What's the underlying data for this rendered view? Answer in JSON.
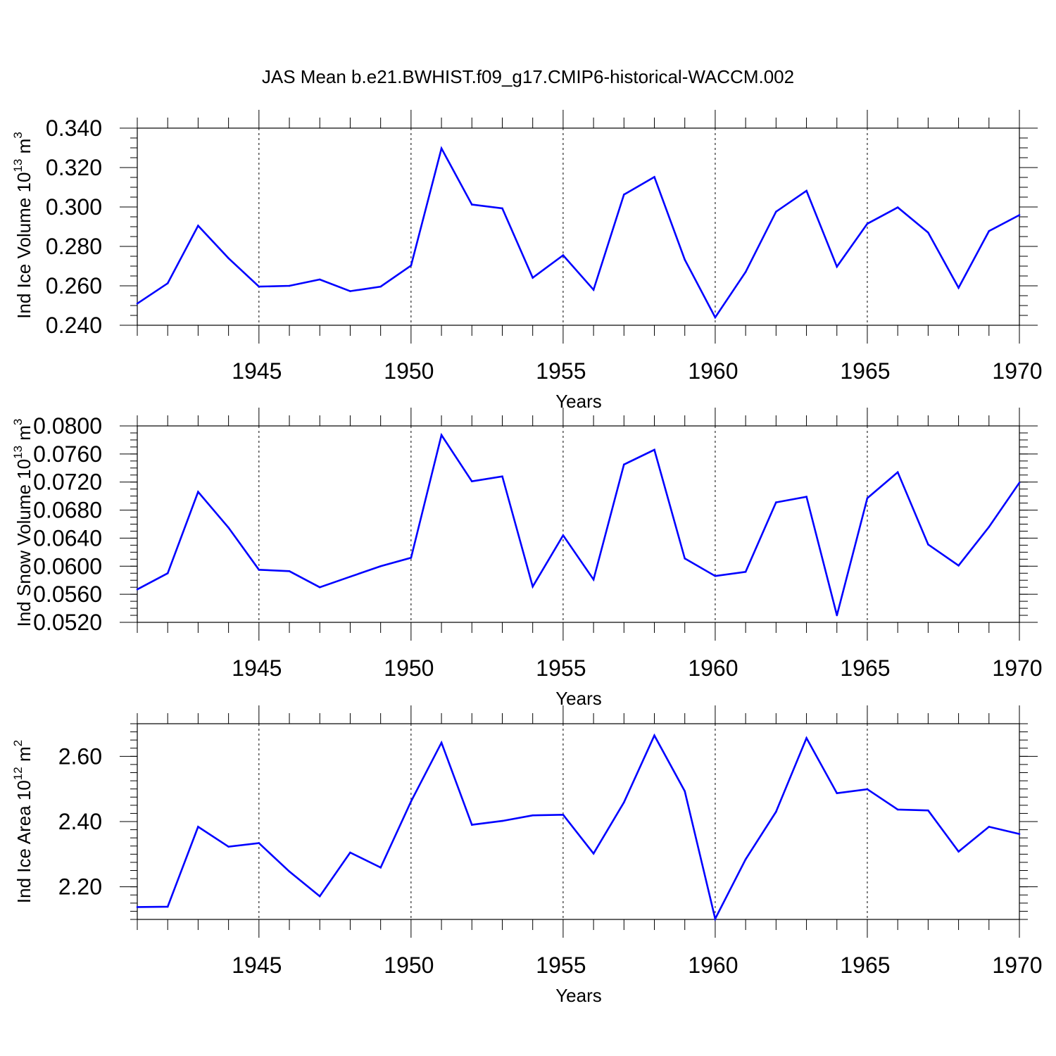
{
  "title": "JAS Mean b.e21.BWHIST.f09_g17.CMIP6-historical-WACCM.002",
  "line_color": "#0000ff",
  "chart_data": [
    {
      "type": "line",
      "ylabel": "Ind Ice Volume 10",
      "ylabel_exp": "13",
      "ylabel_unit": " m",
      "ylabel_unit_exp": "3",
      "xlabel": "Years",
      "xlim": [
        1941,
        1970
      ],
      "ylim": [
        0.24,
        0.34
      ],
      "yticks": [
        0.24,
        0.26,
        0.28,
        0.3,
        0.32,
        0.34
      ],
      "ytick_labels": [
        "0.240",
        "0.260",
        "0.280",
        "0.300",
        "0.320",
        "0.340"
      ],
      "xticks": [
        1945,
        1950,
        1955,
        1960,
        1965,
        1970
      ],
      "xtick_labels": [
        "1945",
        "1950",
        "1955",
        "1960",
        "1965",
        "1970"
      ],
      "x": [
        1941,
        1942,
        1943,
        1944,
        1945,
        1946,
        1947,
        1948,
        1949,
        1950,
        1951,
        1952,
        1953,
        1954,
        1955,
        1956,
        1957,
        1958,
        1959,
        1960,
        1961,
        1962,
        1963,
        1964,
        1965,
        1966,
        1967,
        1968,
        1969,
        1970
      ],
      "values": [
        0.251,
        0.2613,
        0.2905,
        0.274,
        0.2596,
        0.26,
        0.2632,
        0.2573,
        0.2596,
        0.2703,
        0.3297,
        0.3012,
        0.2993,
        0.2641,
        0.2755,
        0.258,
        0.3063,
        0.3152,
        0.2733,
        0.244,
        0.267,
        0.2976,
        0.3082,
        0.2697,
        0.2915,
        0.2998,
        0.287,
        0.259,
        0.2878,
        0.2959
      ]
    },
    {
      "type": "line",
      "ylabel": "Ind Snow Volume 10",
      "ylabel_exp": "13",
      "ylabel_unit": " m",
      "ylabel_unit_exp": "3",
      "xlabel": "Years",
      "xlim": [
        1941,
        1970
      ],
      "ylim": [
        0.052,
        0.08
      ],
      "yticks": [
        0.052,
        0.056,
        0.06,
        0.064,
        0.068,
        0.072,
        0.076,
        0.08
      ],
      "ytick_labels": [
        "0.0520",
        "0.0560",
        "0.0600",
        "0.0640",
        "0.0680",
        "0.0720",
        "0.0760",
        "0.0800"
      ],
      "xticks": [
        1945,
        1950,
        1955,
        1960,
        1965,
        1970
      ],
      "xtick_labels": [
        "1945",
        "1950",
        "1955",
        "1960",
        "1965",
        "1970"
      ],
      "x": [
        1941,
        1942,
        1943,
        1944,
        1945,
        1946,
        1947,
        1948,
        1949,
        1950,
        1951,
        1952,
        1953,
        1954,
        1955,
        1956,
        1957,
        1958,
        1959,
        1960,
        1961,
        1962,
        1963,
        1964,
        1965,
        1966,
        1967,
        1968,
        1969,
        1970
      ],
      "values": [
        0.0567,
        0.059,
        0.0706,
        0.0655,
        0.0595,
        0.0593,
        0.057,
        0.0585,
        0.06,
        0.0612,
        0.0787,
        0.0721,
        0.0728,
        0.0571,
        0.0644,
        0.0581,
        0.0745,
        0.0766,
        0.0611,
        0.0586,
        0.0592,
        0.0691,
        0.0699,
        0.053,
        0.0697,
        0.0734,
        0.0631,
        0.0601,
        0.0656,
        0.0719
      ]
    },
    {
      "type": "line",
      "ylabel": "Ind Ice Area 10",
      "ylabel_exp": "12",
      "ylabel_unit": " m",
      "ylabel_unit_exp": "2",
      "xlabel": "Years",
      "xlim": [
        1941,
        1970
      ],
      "ylim": [
        2.1,
        2.7
      ],
      "yticks": [
        2.2,
        2.4,
        2.6
      ],
      "ytick_labels": [
        "2.20",
        "2.40",
        "2.60"
      ],
      "xticks": [
        1945,
        1950,
        1955,
        1960,
        1965,
        1970
      ],
      "xtick_labels": [
        "1945",
        "1950",
        "1955",
        "1960",
        "1965",
        "1970"
      ],
      "x": [
        1941,
        1942,
        1943,
        1944,
        1945,
        1946,
        1947,
        1948,
        1949,
        1950,
        1951,
        1952,
        1953,
        1954,
        1955,
        1956,
        1957,
        1958,
        1959,
        1960,
        1961,
        1962,
        1963,
        1964,
        1965,
        1966,
        1967,
        1968,
        1969,
        1970
      ],
      "values": [
        2.138,
        2.139,
        2.384,
        2.323,
        2.334,
        2.247,
        2.171,
        2.305,
        2.259,
        2.462,
        2.642,
        2.39,
        2.402,
        2.419,
        2.421,
        2.302,
        2.459,
        2.664,
        2.493,
        2.102,
        2.284,
        2.43,
        2.656,
        2.487,
        2.499,
        2.437,
        2.434,
        2.308,
        2.384,
        2.362
      ]
    }
  ]
}
